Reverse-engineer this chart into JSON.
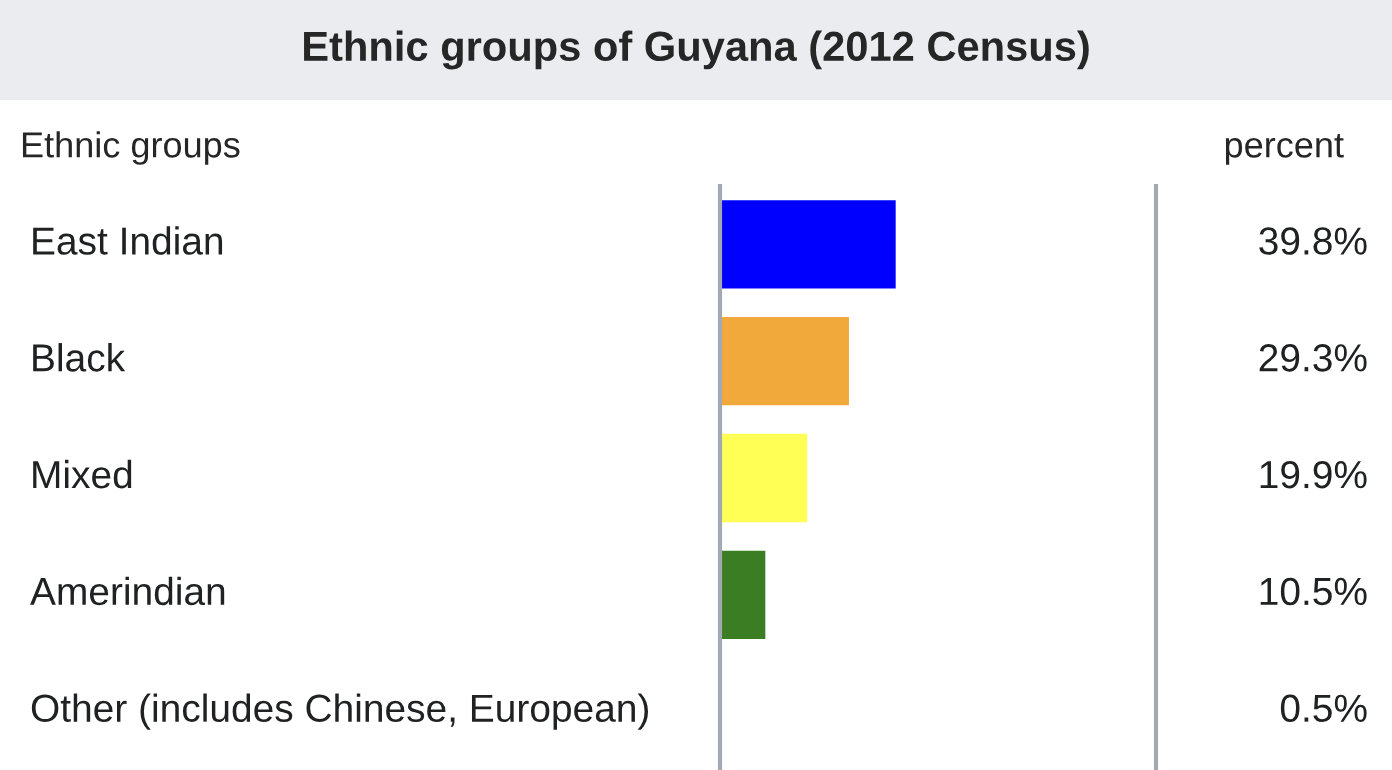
{
  "chart_data": {
    "type": "bar",
    "orientation": "horizontal",
    "title": "Ethnic groups of Guyana (2012 Census)",
    "ylabel": "Ethnic groups",
    "annotations": [
      "percent"
    ],
    "categories": [
      "East Indian",
      "Black",
      "Mixed",
      "Amerindian",
      "Other (includes Chinese, European)"
    ],
    "values": [
      39.8,
      29.3,
      19.9,
      10.5,
      0.5
    ],
    "value_labels": [
      "39.8%",
      "29.3%",
      "19.9%",
      "10.5%",
      "0.5%"
    ],
    "colors": [
      "#0000ff",
      "#f2a93b",
      "#ffff55",
      "#3a7d22",
      "#e8b36b"
    ],
    "xlim": [
      0,
      98
    ]
  }
}
